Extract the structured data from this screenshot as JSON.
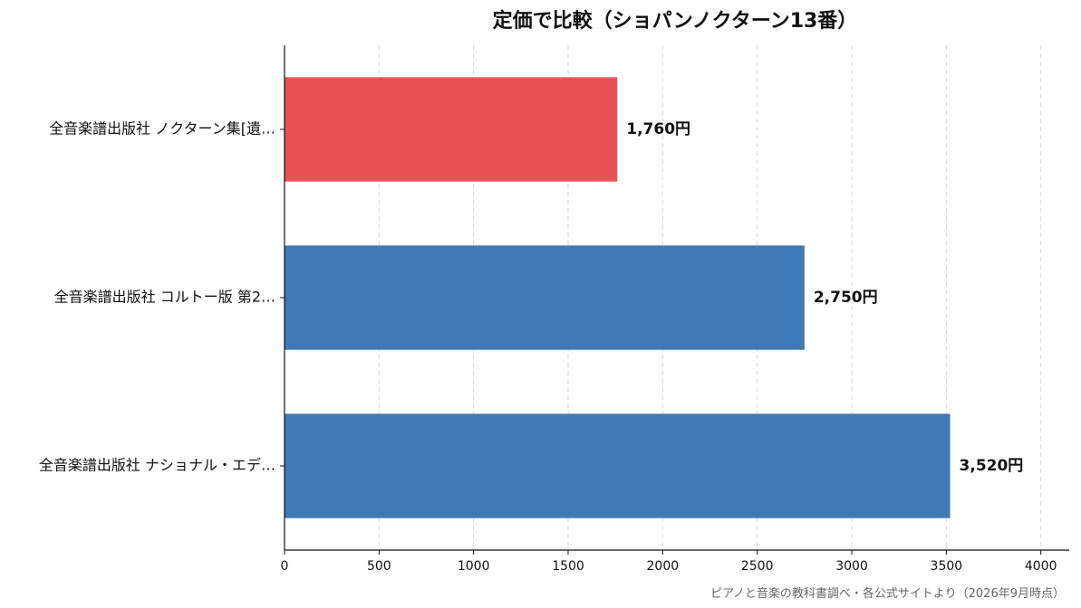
{
  "chart_data": {
    "type": "bar",
    "orientation": "horizontal",
    "title": "定価で比較（ショパンノクターン13番）",
    "categories": [
      "全音楽譜出版社 ノクターン集[遺…",
      "全音楽譜出版社 コルトー版 第2…",
      "全音楽譜出版社 ナショナル・エデ…"
    ],
    "values": [
      1760,
      2750,
      3520
    ],
    "value_labels": [
      "1,760円",
      "2,750円",
      "3,520円"
    ],
    "bar_colors": [
      "#e85254",
      "#3f7ab6",
      "#3f7ab6"
    ],
    "xlim": [
      0,
      4150
    ],
    "x_ticks": [
      0,
      500,
      1000,
      1500,
      2000,
      2500,
      3000,
      3500,
      4000
    ],
    "x_tick_labels": [
      "0",
      "500",
      "1000",
      "1500",
      "2000",
      "2500",
      "3000",
      "3500",
      "4000"
    ],
    "grid": "vertical-dashed",
    "xlabel": "",
    "ylabel": ""
  },
  "source_note": "ピアノと音楽の教科書調べ・各公式サイトより（2026年9月時点）"
}
